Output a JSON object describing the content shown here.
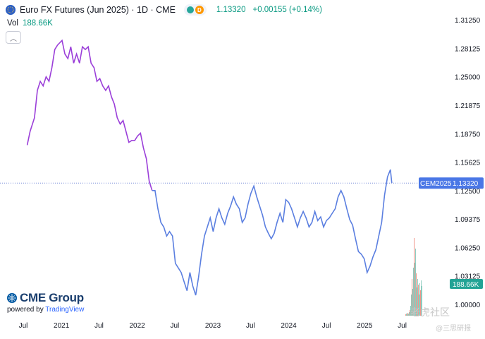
{
  "header": {
    "title": "Euro FX Futures (Jun 2025) · 1D · CME",
    "d_badge": "D",
    "price": "1.13320",
    "change": "+0.00155 (+0.14%)"
  },
  "volume": {
    "label": "Vol",
    "value": "188.66K"
  },
  "logo": {
    "name": "CME Group",
    "powered_prefix": "powered by ",
    "powered_brand": "TradingView"
  },
  "watermark": {
    "line1": "老虎社区",
    "line2": "@三思研报"
  },
  "colors": {
    "up_line": "#5b7fe0",
    "past_line": "#9b3fd9",
    "label_bg": "#4a77e6",
    "vol_badge_bg": "#22a395",
    "grid_text": "#131722",
    "axis_text": "#131722"
  },
  "chart_data": {
    "type": "line",
    "title": "Euro FX Futures (Jun 2025) · 1D · CME",
    "xlabel": "",
    "ylabel": "",
    "ylim": [
      0.9875,
      1.3266
    ],
    "y_ticks": [
      "1.31250",
      "1.28125",
      "1.25000",
      "1.21875",
      "1.18750",
      "1.15625",
      "1.12500",
      "1.09375",
      "1.06250",
      "1.03125",
      "1.00000"
    ],
    "x_ticks": [
      "Jul",
      "2021",
      "Jul",
      "2022",
      "Jul",
      "2023",
      "Jul",
      "2024",
      "Jul",
      "2025",
      "Jul"
    ],
    "last_label": {
      "symbol": "CEM2025",
      "value": "1.13320"
    },
    "volume_label": "188.66K",
    "grid": false,
    "series": [
      {
        "x": [
          "2020-07-20",
          "2020-08-03",
          "2020-08-24",
          "2020-09-07",
          "2020-09-21",
          "2020-10-05",
          "2020-10-19",
          "2020-11-02",
          "2020-11-16",
          "2020-11-30",
          "2020-12-14",
          "2021-01-04",
          "2021-01-18",
          "2021-02-01",
          "2021-02-15",
          "2021-03-01",
          "2021-03-15",
          "2021-03-29",
          "2021-04-12",
          "2021-04-26",
          "2021-05-10",
          "2021-05-24",
          "2021-06-07",
          "2021-06-21",
          "2021-07-05",
          "2021-07-19",
          "2021-08-02",
          "2021-08-16",
          "2021-08-30",
          "2021-09-13",
          "2021-09-27",
          "2021-10-11",
          "2021-10-25",
          "2021-11-08",
          "2021-11-22",
          "2021-12-06",
          "2021-12-20",
          "2022-01-03",
          "2022-01-17",
          "2022-01-31",
          "2022-02-14",
          "2022-02-28",
          "2022-03-14",
          "2022-03-28",
          "2022-04-11",
          "2022-04-25",
          "2022-05-09",
          "2022-05-23",
          "2022-06-06",
          "2022-06-20",
          "2022-07-04",
          "2022-07-18",
          "2022-08-01",
          "2022-08-15",
          "2022-08-29",
          "2022-09-12",
          "2022-09-26",
          "2022-10-10",
          "2022-10-24",
          "2022-11-07",
          "2022-11-21",
          "2022-12-05",
          "2022-12-19",
          "2023-01-02",
          "2023-01-16",
          "2023-01-30",
          "2023-02-13",
          "2023-02-27",
          "2023-03-13",
          "2023-03-27",
          "2023-04-10",
          "2023-04-24",
          "2023-05-08",
          "2023-05-22",
          "2023-06-05",
          "2023-06-19",
          "2023-07-03",
          "2023-07-17",
          "2023-07-31",
          "2023-08-14",
          "2023-08-28",
          "2023-09-11",
          "2023-09-25",
          "2023-10-09",
          "2023-10-23",
          "2023-11-06",
          "2023-11-20",
          "2023-12-04",
          "2023-12-18",
          "2024-01-01",
          "2024-01-15",
          "2024-01-29",
          "2024-02-12",
          "2024-02-26",
          "2024-03-11",
          "2024-03-25",
          "2024-04-08",
          "2024-04-22",
          "2024-05-06",
          "2024-05-20",
          "2024-06-03",
          "2024-06-17",
          "2024-07-01",
          "2024-07-15",
          "2024-07-29",
          "2024-08-12",
          "2024-08-26",
          "2024-09-09",
          "2024-09-23",
          "2024-10-07",
          "2024-10-21",
          "2024-11-04",
          "2024-11-18",
          "2024-12-02",
          "2024-12-16",
          "2024-12-30",
          "2025-01-13",
          "2025-01-27",
          "2025-02-10",
          "2025-02-24",
          "2025-03-10",
          "2025-03-24",
          "2025-04-07",
          "2025-04-21",
          "2025-05-05",
          "2025-05-12"
        ],
        "values": [
          1.175,
          1.19,
          1.205,
          1.235,
          1.245,
          1.24,
          1.25,
          1.245,
          1.26,
          1.28,
          1.285,
          1.29,
          1.275,
          1.27,
          1.283,
          1.265,
          1.275,
          1.265,
          1.283,
          1.28,
          1.283,
          1.265,
          1.26,
          1.245,
          1.248,
          1.24,
          1.235,
          1.24,
          1.228,
          1.22,
          1.205,
          1.198,
          1.202,
          1.19,
          1.178,
          1.18,
          1.18,
          1.185,
          1.188,
          1.172,
          1.16,
          1.135,
          1.125,
          1.125,
          1.105,
          1.09,
          1.085,
          1.075,
          1.08,
          1.075,
          1.045,
          1.04,
          1.035,
          1.025,
          1.015,
          1.035,
          1.02,
          1.01,
          1.03,
          1.055,
          1.075,
          1.085,
          1.095,
          1.08,
          1.095,
          1.105,
          1.095,
          1.088,
          1.1,
          1.108,
          1.118,
          1.11,
          1.105,
          1.09,
          1.095,
          1.11,
          1.122,
          1.13,
          1.118,
          1.108,
          1.098,
          1.085,
          1.078,
          1.072,
          1.078,
          1.09,
          1.1,
          1.09,
          1.115,
          1.112,
          1.105,
          1.095,
          1.085,
          1.095,
          1.102,
          1.095,
          1.085,
          1.09,
          1.102,
          1.092,
          1.096,
          1.085,
          1.092,
          1.095,
          1.1,
          1.105,
          1.118,
          1.125,
          1.118,
          1.105,
          1.093,
          1.087,
          1.072,
          1.058,
          1.055,
          1.05,
          1.035,
          1.042,
          1.052,
          1.06,
          1.075,
          1.09,
          1.12,
          1.14,
          1.148,
          1.1332
        ]
      }
    ]
  }
}
